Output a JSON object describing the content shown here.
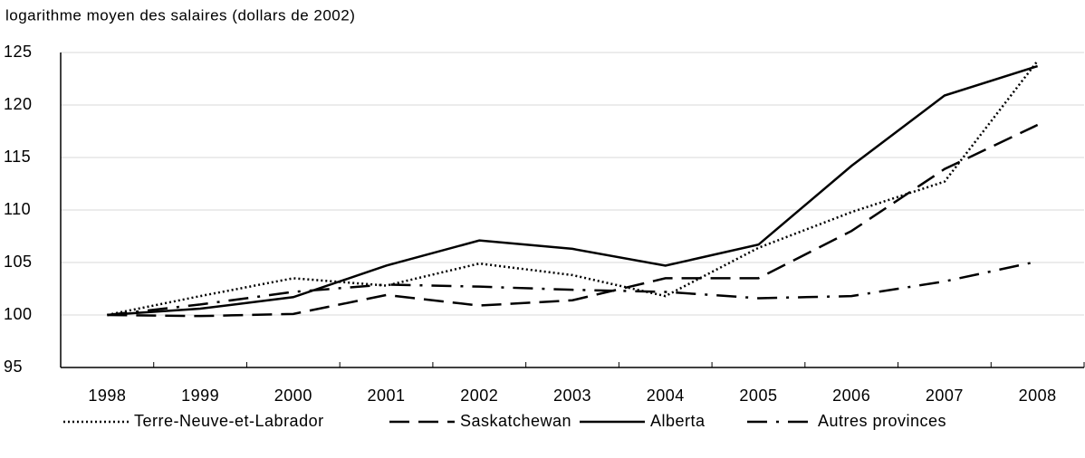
{
  "chart_data": {
    "type": "line",
    "title": "logarithme moyen des salaires (dollars de 2002)",
    "categories": [
      "1998",
      "1999",
      "2000",
      "2001",
      "2002",
      "2003",
      "2004",
      "2005",
      "2006",
      "2007",
      "2008"
    ],
    "series": [
      {
        "name": "Terre-Neuve-et-Labrador",
        "color": "#000000",
        "style": "dotted",
        "values": [
          100,
          101.8,
          103.5,
          102.8,
          104.9,
          103.8,
          101.8,
          106.4,
          109.8,
          112.7,
          124.2
        ]
      },
      {
        "name": "Saskatchewan",
        "color": "#000000",
        "style": "dashed",
        "values": [
          100,
          99.9,
          100.1,
          101.9,
          100.9,
          101.4,
          103.5,
          103.5,
          108.0,
          113.9,
          118.1
        ]
      },
      {
        "name": "Alberta",
        "color": "#000000",
        "style": "solid",
        "values": [
          100,
          100.6,
          101.7,
          104.7,
          107.1,
          106.3,
          104.7,
          106.7,
          114.2,
          120.9,
          123.7
        ]
      },
      {
        "name": "Autres provinces",
        "color": "#000000",
        "style": "dashdot",
        "values": [
          100,
          101.0,
          102.2,
          102.9,
          102.7,
          102.4,
          102.2,
          101.6,
          101.8,
          103.2,
          105.1
        ]
      }
    ],
    "ylim": [
      95,
      125
    ],
    "yticks": [
      95,
      100,
      105,
      110,
      115,
      120,
      125
    ],
    "grid": true,
    "legend": "bottom"
  }
}
